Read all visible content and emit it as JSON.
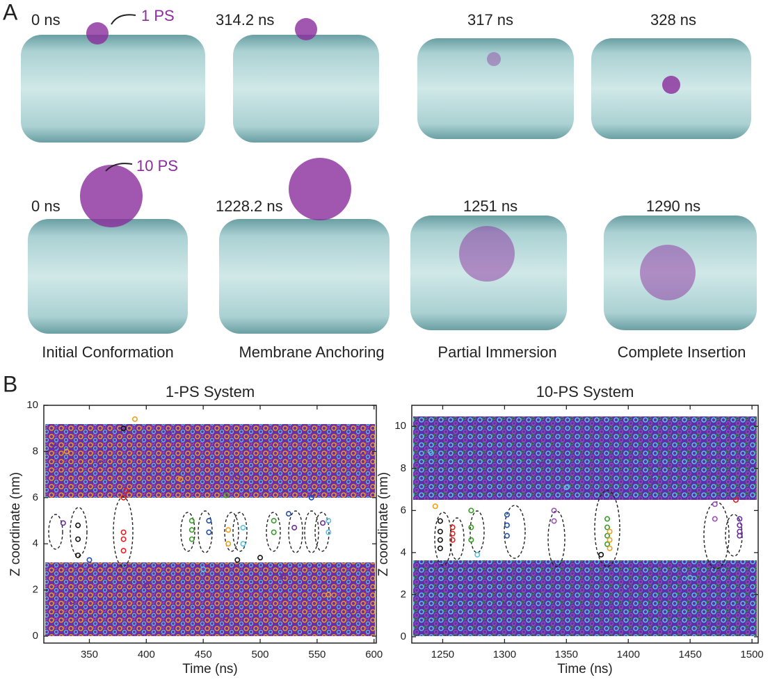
{
  "panel_a": {
    "label": "A",
    "rows": [
      {
        "frames": [
          "0 ns",
          "314.2 ns",
          "317 ns",
          "328 ns"
        ],
        "annotation": "1 PS"
      },
      {
        "frames": [
          "0 ns",
          "1228.2 ns",
          "1251 ns",
          "1290 ns"
        ],
        "annotation": "10 PS"
      }
    ],
    "stages": [
      "Initial Conformation",
      "Membrane Anchoring",
      "Partial Immersion",
      "Complete Insertion"
    ]
  },
  "panel_b": {
    "label": "B"
  },
  "chart_data": [
    {
      "type": "scatter",
      "title": "1-PS System",
      "xlabel": "Time (ns)",
      "ylabel": "Z coordinate (nm)",
      "xlim": [
        310,
        602
      ],
      "ylim": [
        -0.3,
        10
      ],
      "xticks": [
        350,
        400,
        450,
        500,
        550,
        600
      ],
      "yticks": [
        0,
        2,
        4,
        6,
        8,
        10
      ],
      "series": [
        {
          "color": "#6a2fa0",
          "x": [
            327,
            555,
            530,
            320,
            360,
            420,
            480,
            590,
            335,
            400,
            470,
            520,
            580
          ],
          "values": [
            4.9,
            4.9,
            4.7,
            8.2,
            7.5,
            8.8,
            6.9,
            7.8,
            1.5,
            2.2,
            0.8,
            2.6,
            1.1
          ]
        },
        {
          "color": "#111111",
          "x": [
            340,
            340,
            340,
            380,
            480,
            500
          ],
          "values": [
            4.8,
            4.2,
            3.5,
            9.0,
            3.3,
            3.4
          ]
        },
        {
          "color": "#e02020",
          "x": [
            380,
            380,
            380,
            380,
            382
          ],
          "values": [
            6.0,
            4.5,
            4.2,
            3.7,
            6.3
          ]
        },
        {
          "color": "#3a9a2a",
          "x": [
            440,
            440,
            440,
            512,
            512,
            470
          ],
          "values": [
            5.0,
            4.6,
            4.2,
            5.0,
            4.5,
            6.1
          ]
        },
        {
          "color": "#1f4fb0",
          "x": [
            455,
            455,
            525,
            545,
            350
          ],
          "values": [
            5.0,
            4.5,
            5.3,
            6.0,
            3.3
          ]
        },
        {
          "color": "#f0a020",
          "x": [
            472,
            472,
            330,
            430,
            560,
            390
          ],
          "values": [
            4.6,
            4.0,
            8.0,
            6.8,
            1.8,
            9.4
          ]
        },
        {
          "color": "#5bc0de",
          "x": [
            485,
            485,
            560,
            560,
            450
          ],
          "values": [
            4.7,
            4.0,
            5.0,
            4.5,
            2.9
          ]
        }
      ]
    },
    {
      "type": "scatter",
      "title": "10-PS System",
      "xlabel": "Time (ns)",
      "ylabel": "Z coordinate (nm)",
      "xlim": [
        1225,
        1505
      ],
      "ylim": [
        -0.3,
        11
      ],
      "xticks": [
        1250,
        1300,
        1350,
        1400,
        1450,
        1500
      ],
      "yticks": [
        0,
        2,
        4,
        6,
        8,
        10
      ],
      "series": [
        {
          "color": "#111111",
          "x": [
            1248,
            1248,
            1248,
            1248,
            1378
          ],
          "values": [
            5.5,
            5.0,
            4.6,
            4.2,
            3.9
          ]
        },
        {
          "color": "#e02020",
          "x": [
            1258,
            1258,
            1258,
            1487
          ],
          "values": [
            5.2,
            4.9,
            4.6,
            6.5
          ]
        },
        {
          "color": "#3a9a2a",
          "x": [
            1273,
            1273,
            1273,
            1383,
            1383,
            1383,
            1383
          ],
          "values": [
            6.0,
            5.2,
            4.6,
            5.6,
            5.2,
            4.8,
            4.4
          ]
        },
        {
          "color": "#1f4fb0",
          "x": [
            1302,
            1302,
            1302
          ],
          "values": [
            5.8,
            5.3,
            4.8
          ]
        },
        {
          "color": "#9b4fb5",
          "x": [
            1340,
            1340,
            1470,
            1470
          ],
          "values": [
            6.0,
            5.5,
            6.3,
            5.6
          ]
        },
        {
          "color": "#6a2fa0",
          "x": [
            1490,
            1490,
            1490,
            1490,
            1260,
            1330,
            1420,
            1480,
            1300,
            1400
          ],
          "values": [
            5.6,
            5.3,
            5.0,
            4.8,
            9.5,
            8.2,
            7.4,
            10.0,
            1.5,
            2.4
          ]
        },
        {
          "color": "#f0a020",
          "x": [
            1385,
            1385,
            1385,
            1244
          ],
          "values": [
            5.0,
            4.6,
            4.2,
            6.2
          ]
        },
        {
          "color": "#5bc0de",
          "x": [
            1278,
            1350,
            1450,
            1240
          ],
          "values": [
            3.9,
            7.1,
            2.8,
            8.8
          ]
        }
      ]
    }
  ]
}
